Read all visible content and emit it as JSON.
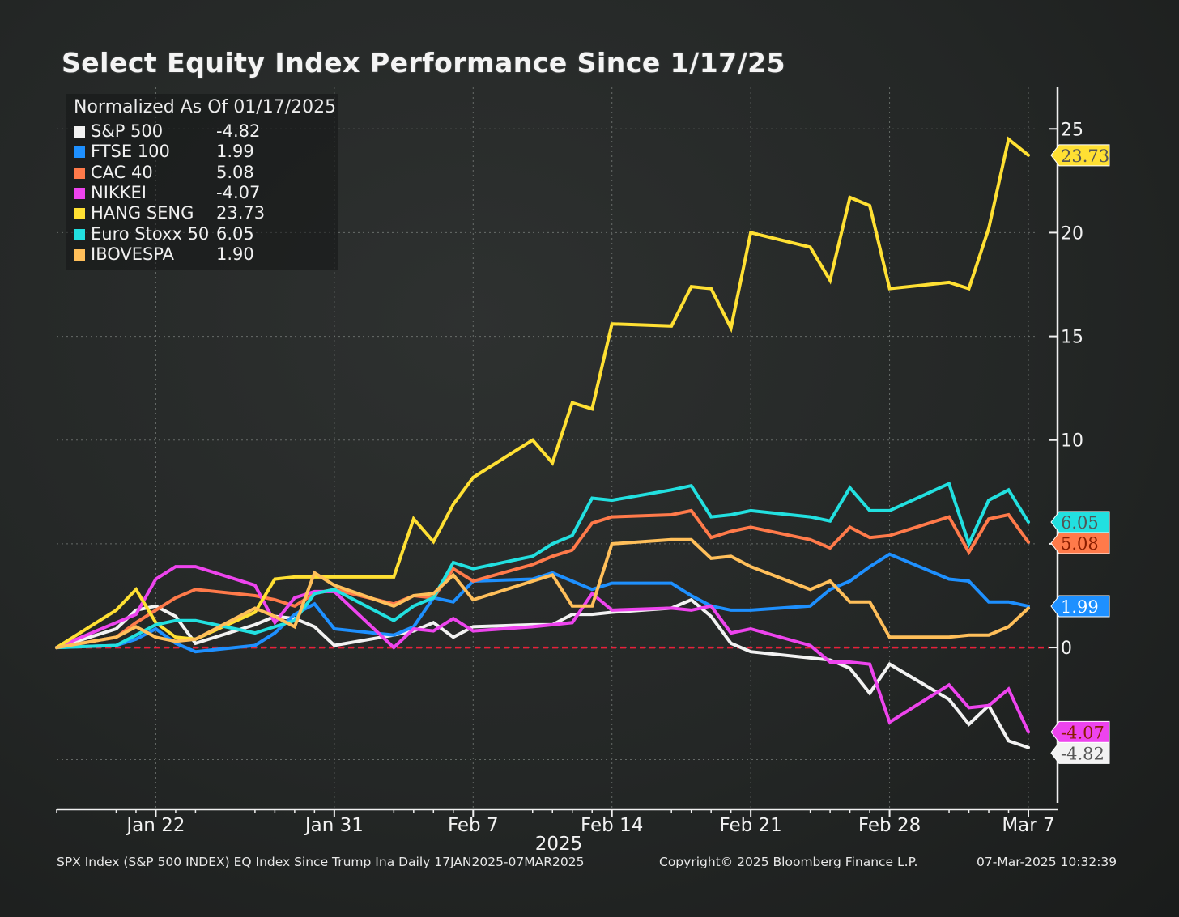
{
  "title": "Select Equity Index Performance Since 1/17/25",
  "legend": {
    "heading": "Normalized As Of 01/17/2025",
    "items": [
      {
        "name": "S&P 500",
        "value": "-4.82",
        "color": "#f2f2f2"
      },
      {
        "name": "FTSE 100",
        "value": "1.99",
        "color": "#1e90ff"
      },
      {
        "name": "CAC 40",
        "value": "5.08",
        "color": "#ff7a4a"
      },
      {
        "name": "NIKKEI",
        "value": "-4.07",
        "color": "#ee44ee"
      },
      {
        "name": "HANG SENG",
        "value": "23.73",
        "color": "#ffe033"
      },
      {
        "name": "Euro Stoxx 50",
        "value": "6.05",
        "color": "#22e0e0"
      },
      {
        "name": "IBOVESPA",
        "value": "1.90",
        "color": "#ffbf5a"
      }
    ]
  },
  "footer": {
    "left": "SPX Index (S&P 500 INDEX) EQ Index Since Trump Ina  Daily 17JAN2025-07MAR2025",
    "center": "Copyright© 2025 Bloomberg Finance L.P.",
    "right": "07-Mar-2025 10:32:39"
  },
  "chart_data": {
    "type": "line",
    "x": [
      "2025-01-17",
      "2025-01-20",
      "2025-01-21",
      "2025-01-22",
      "2025-01-23",
      "2025-01-24",
      "2025-01-27",
      "2025-01-28",
      "2025-01-29",
      "2025-01-30",
      "2025-01-31",
      "2025-02-03",
      "2025-02-04",
      "2025-02-05",
      "2025-02-06",
      "2025-02-07",
      "2025-02-10",
      "2025-02-11",
      "2025-02-12",
      "2025-02-13",
      "2025-02-14",
      "2025-02-17",
      "2025-02-18",
      "2025-02-19",
      "2025-02-20",
      "2025-02-21",
      "2025-02-24",
      "2025-02-25",
      "2025-02-26",
      "2025-02-27",
      "2025-02-28",
      "2025-03-03",
      "2025-03-04",
      "2025-03-05",
      "2025-03-06",
      "2025-03-07"
    ],
    "x_tick_labels": [
      "Jan 22",
      "Jan 31",
      "Feb 7",
      "Feb 14",
      "Feb 21",
      "Feb 28",
      "Mar 7"
    ],
    "x_tick_dates": [
      "2025-01-22",
      "2025-01-31",
      "2025-02-07",
      "2025-02-14",
      "2025-02-21",
      "2025-02-28",
      "2025-03-07"
    ],
    "xlabel": "2025",
    "ylim": [
      -7.8,
      27
    ],
    "y_ticks": [
      0,
      5,
      10,
      15,
      20,
      25
    ],
    "y_tick_labels": [
      "0",
      "5",
      "10",
      "15",
      "20",
      "25"
    ],
    "y_axis_side": "right",
    "grid": true,
    "zero_line": true,
    "legend_position": "top-left",
    "series": [
      {
        "name": "S&P 500",
        "color": "#f2f2f2",
        "end_label": "-4.82",
        "values": [
          0,
          0.9,
          1.8,
          2.0,
          1.5,
          0.2,
          1.1,
          1.5,
          1.4,
          1.0,
          0.1,
          0.6,
          0.8,
          1.2,
          0.5,
          1.0,
          1.1,
          1.1,
          1.6,
          1.6,
          1.7,
          1.9,
          2.3,
          1.5,
          0.2,
          -0.2,
          -0.5,
          -0.6,
          -1.0,
          -2.2,
          -0.8,
          -2.5,
          -3.7,
          -2.8,
          -4.5,
          -4.82
        ]
      },
      {
        "name": "FTSE 100",
        "color": "#1e90ff",
        "end_label": "1.99",
        "values": [
          0,
          0.1,
          0.4,
          0.9,
          0.2,
          -0.2,
          0.1,
          0.7,
          1.6,
          2.1,
          0.9,
          0.6,
          1.0,
          2.4,
          2.2,
          3.2,
          3.3,
          3.6,
          3.2,
          2.8,
          3.1,
          3.1,
          2.5,
          2.0,
          1.8,
          1.8,
          2.0,
          2.8,
          3.2,
          3.9,
          4.5,
          3.3,
          3.2,
          2.2,
          2.2,
          1.99
        ]
      },
      {
        "name": "CAC 40",
        "color": "#ff7a4a",
        "end_label": "5.08",
        "values": [
          0,
          0.5,
          1.2,
          1.8,
          2.4,
          2.8,
          2.5,
          2.3,
          2.0,
          2.6,
          2.8,
          2.1,
          2.5,
          2.4,
          3.8,
          3.2,
          4.0,
          4.4,
          4.7,
          6.0,
          6.3,
          6.4,
          6.6,
          5.3,
          5.6,
          5.8,
          5.2,
          4.8,
          5.8,
          5.3,
          5.4,
          6.3,
          4.6,
          6.2,
          6.4,
          5.08
        ]
      },
      {
        "name": "NIKKEI",
        "color": "#ee44ee",
        "end_label": "-4.07",
        "values": [
          0,
          1.2,
          1.6,
          3.3,
          3.9,
          3.9,
          3.0,
          1.2,
          2.4,
          2.7,
          2.7,
          0.0,
          0.9,
          0.8,
          1.4,
          0.8,
          1.0,
          1.1,
          1.2,
          2.6,
          1.8,
          1.9,
          1.8,
          2.0,
          0.7,
          0.9,
          0.1,
          -0.7,
          -0.7,
          -0.8,
          -3.6,
          -1.8,
          -2.9,
          -2.8,
          -2.0,
          -4.07
        ]
      },
      {
        "name": "HANG SENG",
        "color": "#ffe033",
        "end_label": "23.73",
        "values": [
          0,
          1.8,
          2.8,
          1.2,
          0.5,
          0.4,
          1.7,
          3.3,
          3.4,
          3.4,
          3.4,
          3.4,
          6.2,
          5.1,
          6.9,
          8.2,
          10.0,
          8.9,
          11.8,
          11.5,
          15.6,
          15.5,
          17.4,
          17.3,
          15.4,
          20.0,
          19.3,
          17.7,
          21.7,
          21.3,
          17.3,
          17.6,
          17.3,
          20.2,
          24.5,
          23.73
        ]
      },
      {
        "name": "Euro Stoxx 50",
        "color": "#22e0e0",
        "end_label": "6.05",
        "values": [
          0,
          0.1,
          0.6,
          1.1,
          1.3,
          1.3,
          0.7,
          1.0,
          1.3,
          2.6,
          2.8,
          1.3,
          2.0,
          2.4,
          4.1,
          3.8,
          4.4,
          5.0,
          5.4,
          7.2,
          7.1,
          7.6,
          7.8,
          6.3,
          6.4,
          6.6,
          6.3,
          6.1,
          7.7,
          6.6,
          6.6,
          7.9,
          5.0,
          7.1,
          7.6,
          6.05
        ]
      },
      {
        "name": "IBOVESPA",
        "color": "#ffbf5a",
        "end_label": "1.90",
        "values": [
          0,
          0.5,
          1.0,
          0.5,
          0.3,
          0.4,
          1.9,
          1.5,
          1.0,
          3.6,
          3.0,
          2.0,
          2.5,
          2.6,
          3.5,
          2.3,
          3.2,
          3.5,
          2.0,
          2.0,
          5.0,
          5.2,
          5.2,
          4.3,
          4.4,
          3.9,
          2.8,
          3.2,
          2.2,
          2.2,
          0.5,
          0.5,
          0.6,
          0.6,
          1.0,
          1.9
        ]
      }
    ]
  }
}
